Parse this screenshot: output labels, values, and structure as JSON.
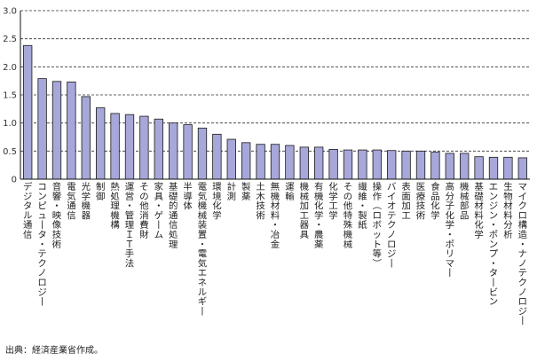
{
  "chart_data": {
    "type": "bar",
    "ylim": [
      0,
      3.0
    ],
    "yticks": [
      "0",
      "0.5",
      "1.0",
      "1.5",
      "2.0",
      "2.5",
      "3.0"
    ],
    "grid": "dashed-horizontal",
    "bar_color": "#A7A7D9",
    "bar_stroke": "#1A1A1A",
    "categories": [
      "デジタル通信",
      "コンピュータ・テクノロジー",
      "音響・映像技術",
      "電気通信",
      "光学機器",
      "制御",
      "熱処理機構",
      "運営・管理ＩＴ手法",
      "その他消費財",
      "家具・ゲーム",
      "基礎的通信処理",
      "半導体",
      "電気機械装置・電気エネルギー",
      "環境化学",
      "計測",
      "製薬",
      "土木技術",
      "無機材料・冶金",
      "運輸",
      "機械加工器具",
      "有機化学・農薬",
      "化学工学",
      "その他特殊機械",
      "繊維・製紙",
      "操作（ロボット等）",
      "バイオテクノロジー",
      "表面加工",
      "医療技術",
      "食品化学",
      "高分子化学・ポリマー",
      "機械部品",
      "基礎材料化学",
      "エンジン・ポンプ・タービン",
      "生物材料分析",
      "マイクロ構造・ナノテクノロジー"
    ],
    "values": [
      2.38,
      1.79,
      1.74,
      1.73,
      1.47,
      1.27,
      1.17,
      1.15,
      1.12,
      1.07,
      1.0,
      0.97,
      0.91,
      0.8,
      0.71,
      0.65,
      0.62,
      0.62,
      0.6,
      0.57,
      0.57,
      0.53,
      0.52,
      0.52,
      0.52,
      0.51,
      0.5,
      0.5,
      0.48,
      0.46,
      0.46,
      0.4,
      0.39,
      0.39,
      0.38
    ]
  },
  "source_note": "出典：経済産業省作成。"
}
